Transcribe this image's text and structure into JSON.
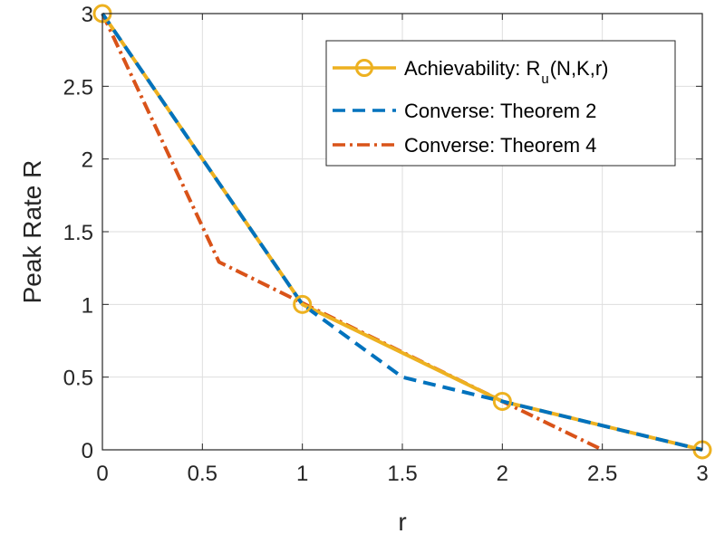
{
  "chart_data": {
    "type": "line",
    "title": "",
    "xlabel": "r",
    "ylabel": "Peak Rate R",
    "xlim": [
      0,
      3
    ],
    "ylim": [
      0,
      3
    ],
    "xticks": [
      0,
      0.5,
      1,
      1.5,
      2,
      2.5,
      3
    ],
    "yticks": [
      0,
      0.5,
      1,
      1.5,
      2,
      2.5,
      3
    ],
    "xtick_labels": [
      "0",
      "0.5",
      "1",
      "1.5",
      "2",
      "2.5",
      "3"
    ],
    "ytick_labels": [
      "0",
      "0.5",
      "1",
      "1.5",
      "2",
      "2.5",
      "3"
    ],
    "grid": true,
    "legend_position": "top-right",
    "series": [
      {
        "name": "Achievability: R_u(N,K,r)",
        "legend_main": "Achievability: R",
        "legend_sub": "u",
        "legend_tail": "(N,K,r)",
        "color": "#EDB120",
        "style": "solid-circle",
        "x": [
          0,
          1,
          2,
          3
        ],
        "y": [
          3,
          1,
          0.3333,
          0
        ]
      },
      {
        "name": "Converse: Theorem 2",
        "color": "#0072BD",
        "style": "dashed",
        "x": [
          0,
          1,
          1.5,
          2,
          3
        ],
        "y": [
          3,
          1,
          0.5,
          0.3333,
          0
        ]
      },
      {
        "name": "Converse: Theorem 4",
        "color": "#D95319",
        "style": "dashdot",
        "x": [
          0,
          0.5833,
          2,
          2.5
        ],
        "y": [
          3,
          1.2917,
          0.3333,
          0
        ]
      }
    ]
  }
}
